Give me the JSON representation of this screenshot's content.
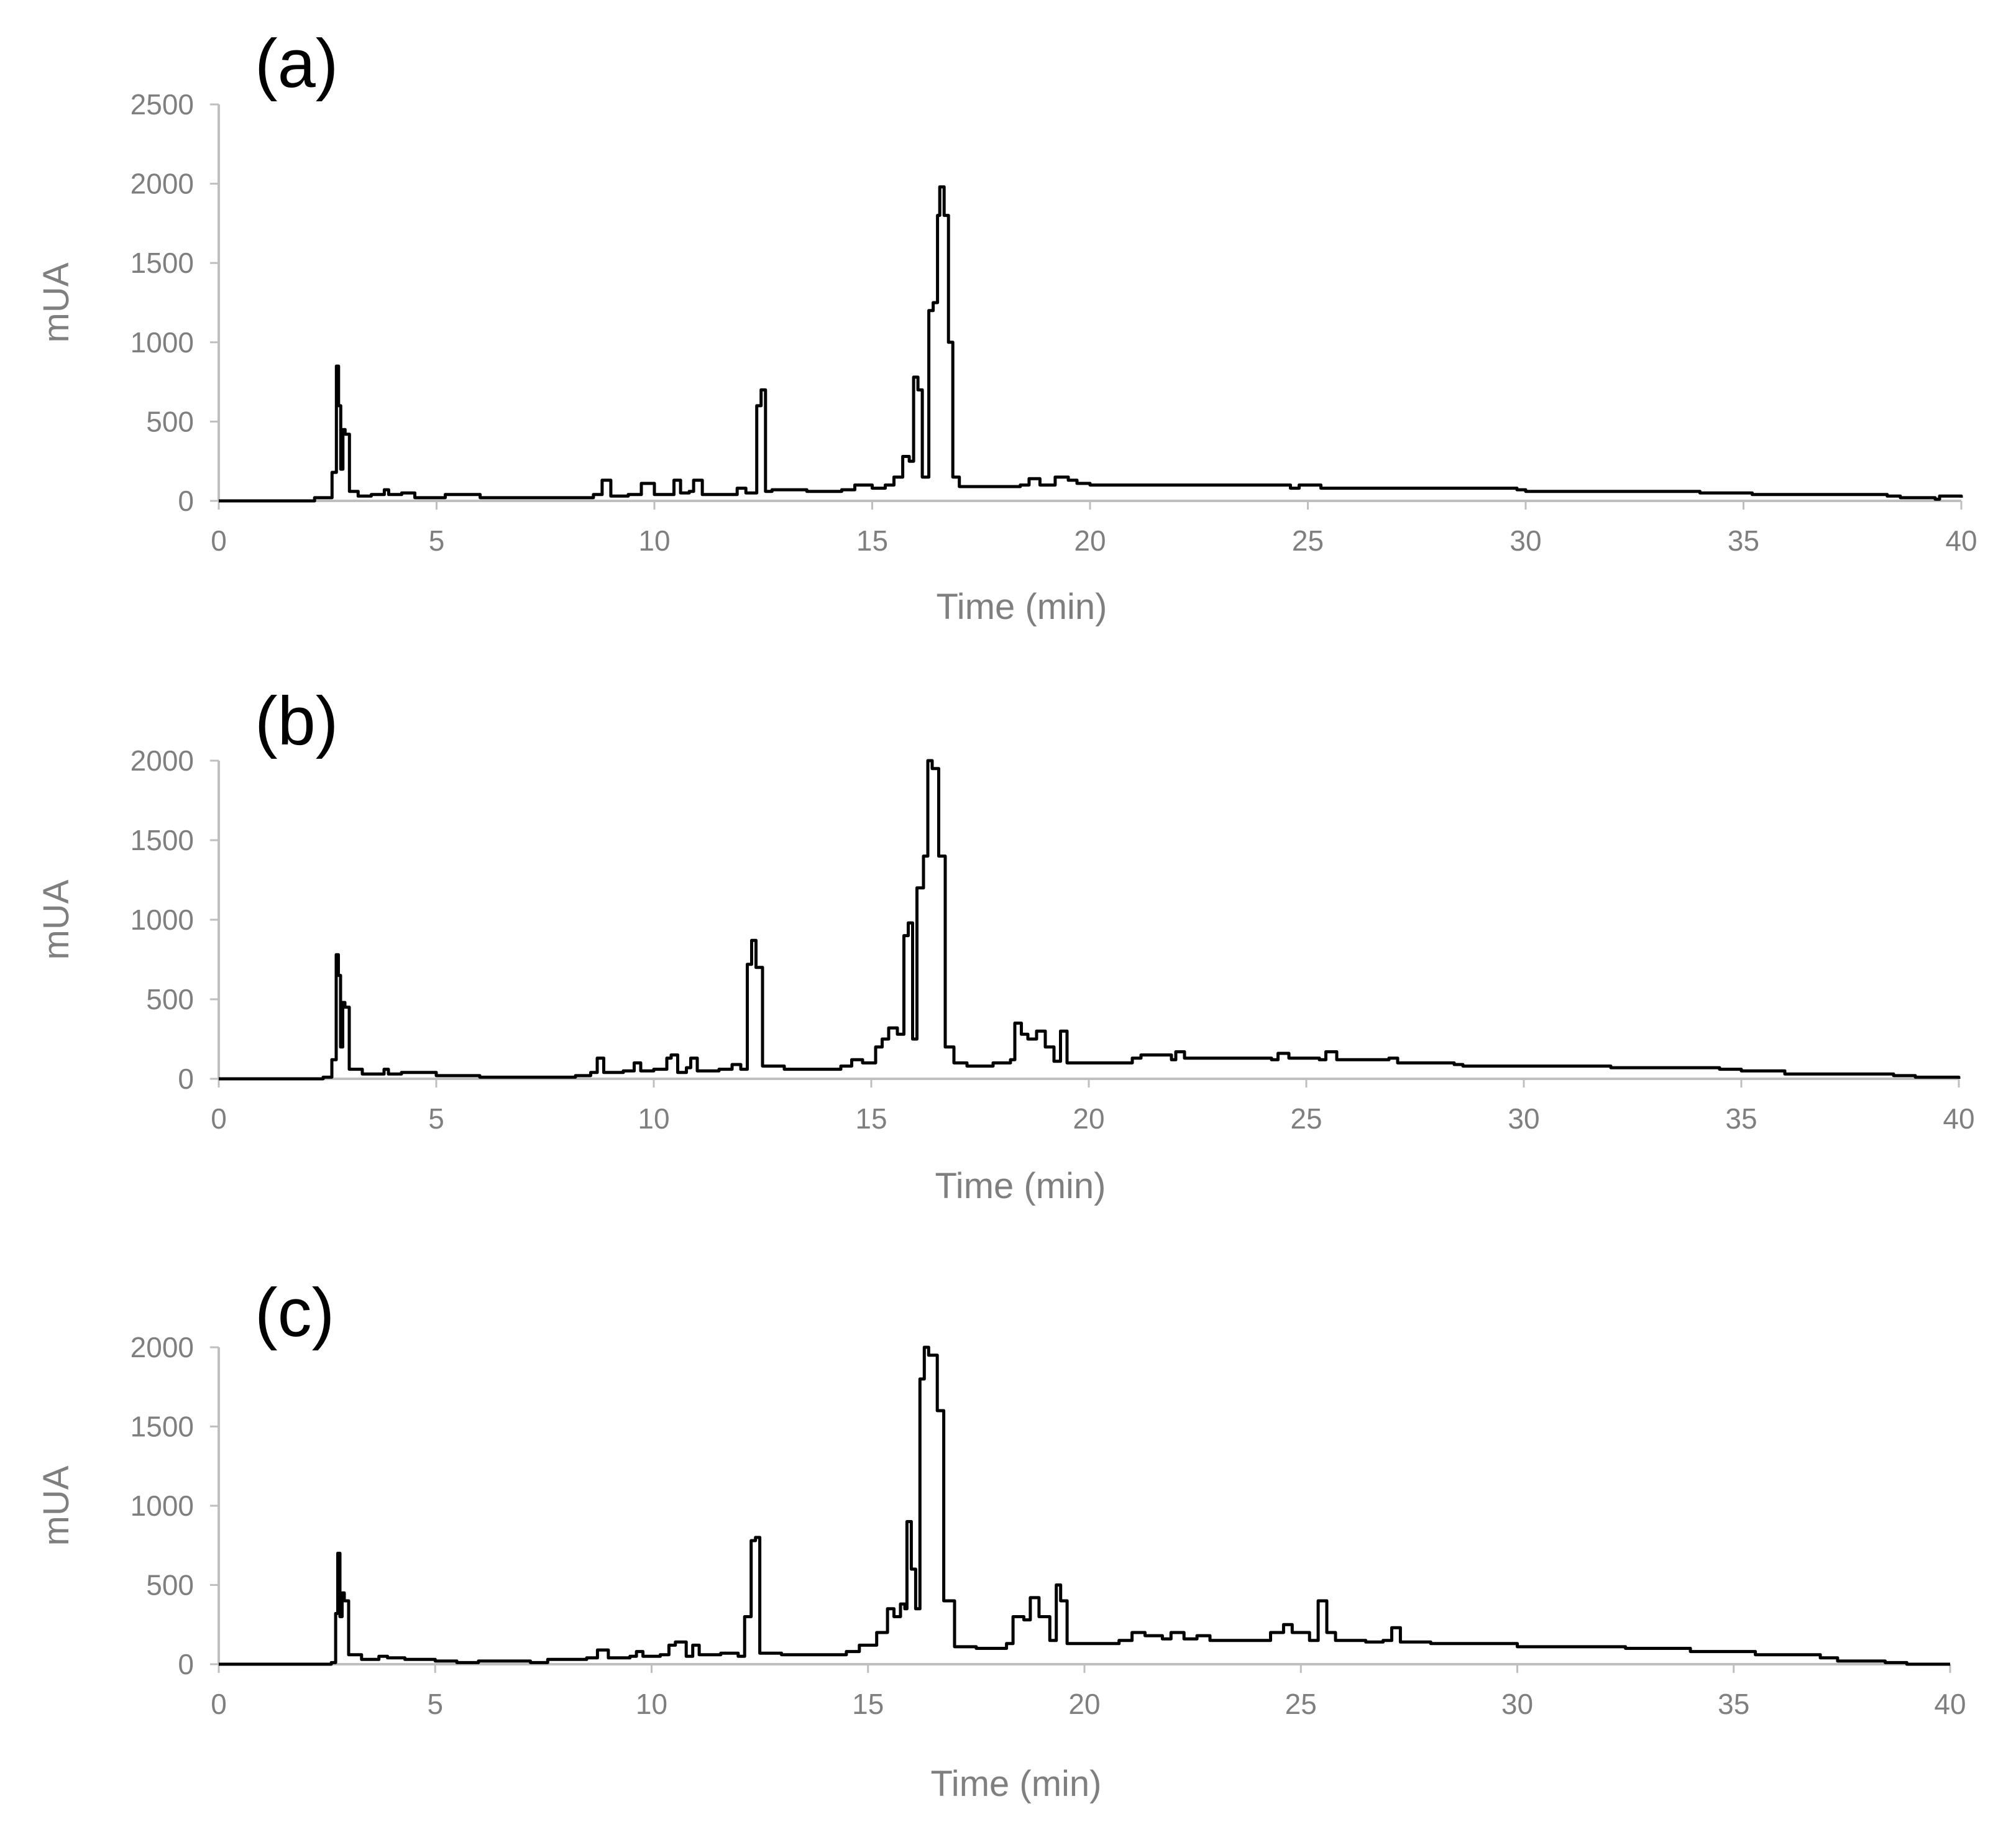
{
  "chart_data": [
    {
      "type": "line",
      "title": "(a)",
      "xlabel": "Time (min)",
      "ylabel": "mUA",
      "xlim": [
        0,
        40
      ],
      "ylim": [
        0,
        2500
      ],
      "xticks": [
        0,
        5,
        10,
        15,
        20,
        25,
        30,
        35,
        40
      ],
      "yticks": [
        0,
        500,
        1000,
        1500,
        2000,
        2500
      ],
      "grid": false,
      "legend": "none",
      "line_color": "#000000",
      "series": [
        {
          "x": [
            0,
            2.2,
            2.6,
            2.7,
            2.75,
            2.8,
            2.85,
            2.9,
            3.0,
            3.2,
            3.5,
            3.8,
            3.9,
            4.2,
            4.5,
            5.0,
            5.2,
            6,
            8.2,
            8.6,
            8.8,
            9.0,
            9.4,
            9.7,
            10.0,
            10.3,
            10.45,
            10.6,
            10.8,
            10.9,
            11.1,
            11.5,
            11.9,
            12.1,
            12.35,
            12.45,
            12.55,
            12.7,
            13.5,
            14.3,
            14.6,
            15.0,
            15.3,
            15.5,
            15.7,
            15.85,
            15.95,
            16.05,
            16.15,
            16.3,
            16.4,
            16.5,
            16.55,
            16.65,
            16.75,
            16.85,
            17.0,
            17.5,
            18.4,
            18.6,
            18.85,
            19.2,
            19.5,
            19.7,
            20,
            24.6,
            24.8,
            25.3,
            25.9,
            26.2,
            29.8,
            30,
            33.9,
            34.0,
            35.2,
            38.3,
            38.6,
            39.4,
            39.5,
            40
          ],
          "y": [
            0,
            20,
            180,
            850,
            600,
            200,
            450,
            420,
            60,
            30,
            40,
            70,
            40,
            50,
            20,
            20,
            40,
            20,
            20,
            40,
            130,
            30,
            40,
            110,
            40,
            40,
            130,
            50,
            60,
            130,
            40,
            40,
            80,
            50,
            600,
            700,
            60,
            70,
            60,
            70,
            100,
            80,
            100,
            150,
            280,
            250,
            780,
            700,
            150,
            1200,
            1250,
            1800,
            1980,
            1800,
            1000,
            150,
            90,
            90,
            100,
            140,
            100,
            150,
            130,
            110,
            100,
            80,
            100,
            80,
            80,
            80,
            70,
            60,
            60,
            50,
            40,
            30,
            20,
            10,
            30,
            20
          ]
        }
      ]
    },
    {
      "type": "line",
      "title": "(b)",
      "xlabel": "Time (min)",
      "ylabel": "mUA",
      "xlim": [
        0,
        40
      ],
      "ylim": [
        0,
        2000
      ],
      "xticks": [
        0,
        5,
        10,
        15,
        20,
        25,
        30,
        35,
        40
      ],
      "yticks": [
        0,
        500,
        1000,
        1500,
        2000
      ],
      "grid": false,
      "legend": "none",
      "line_color": "#000000",
      "series": [
        {
          "x": [
            0,
            2.4,
            2.6,
            2.7,
            2.75,
            2.8,
            2.85,
            2.9,
            3.0,
            3.3,
            3.6,
            3.8,
            3.9,
            4.2,
            5.0,
            6,
            8.2,
            8.55,
            8.7,
            8.85,
            9.3,
            9.55,
            9.7,
            10.0,
            10.3,
            10.4,
            10.55,
            10.75,
            10.85,
            11.0,
            11.5,
            11.8,
            12.0,
            12.15,
            12.25,
            12.35,
            12.5,
            13,
            14.3,
            14.55,
            14.8,
            15.1,
            15.25,
            15.4,
            15.6,
            15.75,
            15.85,
            15.95,
            16.05,
            16.2,
            16.3,
            16.4,
            16.55,
            16.7,
            16.9,
            17.2,
            17.8,
            18.2,
            18.3,
            18.45,
            18.6,
            18.8,
            19.0,
            19.2,
            19.35,
            19.5,
            20,
            21.0,
            21.2,
            21.9,
            22.0,
            22.2,
            24.2,
            24.35,
            24.6,
            25.3,
            25.45,
            25.7,
            26.9,
            27.1,
            28.4,
            28.6,
            32.0,
            34.5,
            35.0,
            36.0,
            38.5,
            39.0,
            40
          ],
          "y": [
            0,
            10,
            120,
            780,
            650,
            200,
            480,
            450,
            60,
            30,
            30,
            60,
            30,
            40,
            20,
            10,
            20,
            40,
            130,
            40,
            50,
            100,
            50,
            60,
            130,
            150,
            40,
            70,
            130,
            50,
            60,
            90,
            60,
            720,
            870,
            700,
            80,
            60,
            80,
            120,
            100,
            200,
            250,
            320,
            280,
            900,
            980,
            250,
            1200,
            1400,
            2000,
            1950,
            1400,
            200,
            100,
            80,
            100,
            120,
            350,
            280,
            250,
            300,
            200,
            110,
            300,
            100,
            100,
            130,
            150,
            120,
            170,
            130,
            120,
            160,
            130,
            120,
            170,
            120,
            130,
            100,
            90,
            80,
            70,
            60,
            50,
            30,
            20,
            10,
            0
          ]
        }
      ]
    },
    {
      "type": "line",
      "title": "(c)",
      "xlabel": "Time (min)",
      "ylabel": "mUA",
      "xlim": [
        0,
        40
      ],
      "ylim": [
        0,
        2000
      ],
      "xticks": [
        0,
        5,
        10,
        15,
        20,
        25,
        30,
        35,
        40
      ],
      "yticks": [
        0,
        500,
        1000,
        1500,
        2000
      ],
      "grid": false,
      "legend": "none",
      "line_color": "#000000",
      "series": [
        {
          "x": [
            0,
            2.6,
            2.7,
            2.75,
            2.8,
            2.85,
            2.9,
            3.0,
            3.3,
            3.7,
            3.9,
            4.3,
            5,
            5.5,
            6,
            7.2,
            7.6,
            8.5,
            8.75,
            9.0,
            9.5,
            9.65,
            9.8,
            10.2,
            10.4,
            10.55,
            10.8,
            10.95,
            11.1,
            11.6,
            12.0,
            12.15,
            12.3,
            12.4,
            12.5,
            13,
            14.0,
            14.5,
            14.8,
            15.2,
            15.45,
            15.6,
            15.75,
            15.85,
            15.9,
            16.0,
            16.1,
            16.2,
            16.3,
            16.4,
            16.6,
            16.75,
            17.0,
            17.5,
            18.2,
            18.35,
            18.6,
            18.75,
            18.95,
            19.2,
            19.35,
            19.45,
            19.6,
            20,
            20.8,
            21.1,
            21.4,
            21.8,
            22.0,
            22.3,
            22.6,
            22.9,
            24.0,
            24.3,
            24.6,
            24.8,
            25.2,
            25.4,
            25.6,
            25.8,
            26.5,
            26.9,
            27.1,
            27.3,
            28.0,
            30,
            32.5,
            34.0,
            35.5,
            37.0,
            37.4,
            38.5,
            39.0,
            40
          ],
          "y": [
            0,
            10,
            320,
            700,
            300,
            450,
            400,
            60,
            30,
            50,
            40,
            30,
            20,
            10,
            20,
            10,
            30,
            40,
            90,
            40,
            50,
            80,
            50,
            60,
            120,
            140,
            50,
            120,
            60,
            70,
            50,
            300,
            780,
            800,
            70,
            60,
            60,
            80,
            120,
            200,
            350,
            300,
            380,
            350,
            900,
            600,
            350,
            1800,
            2000,
            1950,
            1600,
            400,
            110,
            100,
            130,
            300,
            280,
            420,
            300,
            150,
            500,
            400,
            130,
            130,
            150,
            200,
            180,
            160,
            200,
            160,
            180,
            150,
            150,
            200,
            250,
            200,
            150,
            400,
            200,
            150,
            140,
            150,
            230,
            140,
            130,
            110,
            100,
            80,
            60,
            40,
            20,
            10,
            0,
            0
          ]
        }
      ]
    }
  ]
}
